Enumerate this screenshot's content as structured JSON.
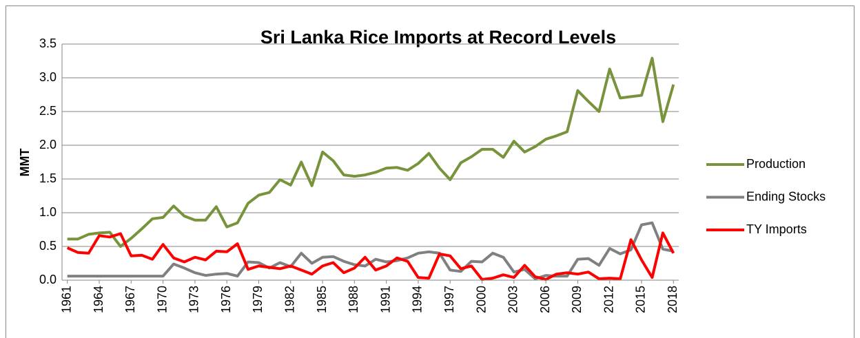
{
  "chart_data": {
    "type": "line",
    "title": "Sri Lanka Rice Imports at Record Levels",
    "y_label": "MMT",
    "x": [
      1961,
      1962,
      1963,
      1964,
      1965,
      1966,
      1967,
      1968,
      1969,
      1970,
      1971,
      1972,
      1973,
      1974,
      1975,
      1976,
      1977,
      1978,
      1979,
      1980,
      1981,
      1982,
      1983,
      1984,
      1985,
      1986,
      1987,
      1988,
      1989,
      1990,
      1991,
      1992,
      1993,
      1994,
      1995,
      1996,
      1997,
      1998,
      1999,
      2000,
      2001,
      2002,
      2003,
      2004,
      2005,
      2006,
      2007,
      2008,
      2009,
      2010,
      2011,
      2012,
      2013,
      2014,
      2015,
      2016,
      2017,
      2018
    ],
    "xlim": [
      1960.5,
      2018.5
    ],
    "xticks": [
      1961,
      1964,
      1967,
      1970,
      1973,
      1976,
      1979,
      1982,
      1985,
      1988,
      1991,
      1994,
      1997,
      2000,
      2003,
      2006,
      2009,
      2012,
      2015,
      2018
    ],
    "ylim": [
      0,
      3.5
    ],
    "yticks": [
      {
        "value": 0,
        "label": "0.0"
      },
      0.5,
      {
        "value": 1,
        "label": "1.0"
      },
      1.5,
      {
        "value": 2,
        "label": "2.0"
      },
      2.5,
      {
        "value": 3,
        "label": "3.0"
      },
      3.5
    ],
    "grid": true,
    "legend": "right",
    "series": [
      {
        "name": "Production",
        "color": "#77933c",
        "values": [
          0.61,
          0.61,
          0.68,
          0.7,
          0.71,
          0.5,
          0.62,
          0.76,
          0.91,
          0.93,
          1.1,
          0.95,
          0.89,
          0.89,
          1.09,
          0.79,
          0.85,
          1.14,
          1.26,
          1.3,
          1.49,
          1.41,
          1.75,
          1.4,
          1.9,
          1.77,
          1.56,
          1.54,
          1.56,
          1.6,
          1.66,
          1.67,
          1.63,
          1.73,
          1.88,
          1.66,
          1.49,
          1.74,
          1.83,
          1.94,
          1.94,
          1.82,
          2.06,
          1.9,
          1.98,
          2.09,
          2.14,
          2.2,
          2.81,
          2.65,
          2.5,
          3.13,
          2.7,
          2.72,
          2.74,
          3.29,
          2.35,
          2.9
        ]
      },
      {
        "name": "Ending Stocks",
        "color": "#808080",
        "values": [
          0.06,
          0.06,
          0.06,
          0.06,
          0.06,
          0.06,
          0.06,
          0.06,
          0.06,
          0.06,
          0.24,
          0.18,
          0.11,
          0.07,
          0.09,
          0.1,
          0.06,
          0.27,
          0.26,
          0.18,
          0.26,
          0.2,
          0.4,
          0.25,
          0.34,
          0.35,
          0.28,
          0.23,
          0.21,
          0.31,
          0.27,
          0.29,
          0.33,
          0.4,
          0.42,
          0.4,
          0.15,
          0.13,
          0.28,
          0.27,
          0.4,
          0.34,
          0.12,
          0.16,
          0.02,
          0.07,
          0.06,
          0.06,
          0.31,
          0.32,
          0.22,
          0.47,
          0.39,
          0.45,
          0.82,
          0.85,
          0.46,
          0.43
        ]
      },
      {
        "name": "TY Imports",
        "color": "#ff0000",
        "values": [
          0.48,
          0.41,
          0.4,
          0.66,
          0.64,
          0.69,
          0.36,
          0.37,
          0.31,
          0.53,
          0.33,
          0.27,
          0.34,
          0.3,
          0.43,
          0.42,
          0.54,
          0.16,
          0.21,
          0.19,
          0.17,
          0.21,
          0.15,
          0.09,
          0.21,
          0.26,
          0.11,
          0.18,
          0.34,
          0.15,
          0.21,
          0.33,
          0.28,
          0.04,
          0.03,
          0.39,
          0.36,
          0.17,
          0.21,
          0.01,
          0.03,
          0.08,
          0.04,
          0.22,
          0.05,
          0.01,
          0.09,
          0.11,
          0.09,
          0.12,
          0.02,
          0.03,
          0.02,
          0.6,
          0.3,
          0.04,
          0.7,
          0.4
        ]
      }
    ]
  }
}
